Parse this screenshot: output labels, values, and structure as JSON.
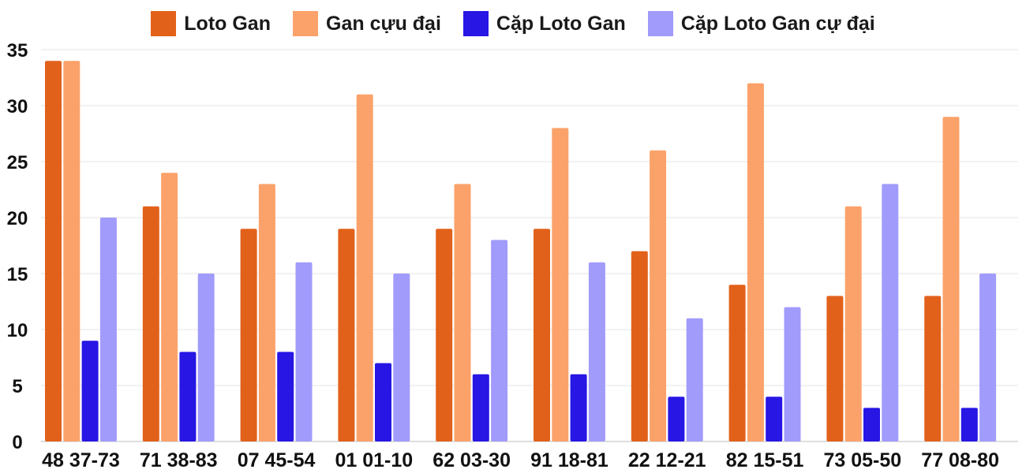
{
  "chart_data": {
    "type": "bar",
    "title": "",
    "xlabel": "",
    "ylabel": "",
    "ylim": [
      0,
      35
    ],
    "yticks": [
      0,
      5,
      10,
      15,
      20,
      25,
      30,
      35
    ],
    "grid": true,
    "legend_position": "top-center",
    "categories": [
      "48 37-73",
      "71 38-83",
      "07 45-54",
      "01 01-10",
      "62 03-30",
      "91 18-81",
      "22 12-21",
      "82 15-51",
      "73 05-50",
      "77 08-80"
    ],
    "series": [
      {
        "name": "Loto Gan",
        "color": "#e2611a",
        "values": [
          34,
          21,
          19,
          19,
          19,
          19,
          17,
          14,
          13,
          13
        ]
      },
      {
        "name": "Gan cựu đại",
        "color": "#fba26a",
        "values": [
          34,
          24,
          23,
          31,
          23,
          28,
          26,
          32,
          21,
          29
        ]
      },
      {
        "name": "Cặp Loto Gan",
        "color": "#2716e4",
        "values": [
          9,
          8,
          8,
          7,
          6,
          6,
          4,
          4,
          3,
          3
        ]
      },
      {
        "name": "Cặp Loto Gan cự đại",
        "color": "#a19bfb",
        "values": [
          20,
          15,
          16,
          15,
          18,
          16,
          11,
          12,
          23,
          15
        ]
      }
    ]
  }
}
